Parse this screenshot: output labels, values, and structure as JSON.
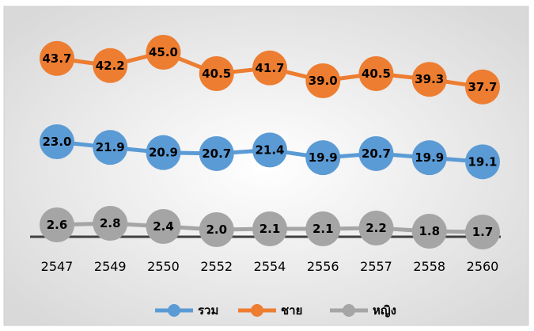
{
  "chart_data": {
    "type": "line",
    "categories": [
      "2547",
      "2549",
      "2550",
      "2552",
      "2554",
      "2556",
      "2557",
      "2558",
      "2560"
    ],
    "ylim": [
      0,
      50
    ],
    "grid": false,
    "legend_position": "bottom",
    "series": [
      {
        "name": "รวม",
        "color": "#5B9BD5",
        "values": [
          23.0,
          21.9,
          20.9,
          20.7,
          21.4,
          19.9,
          20.7,
          19.9,
          19.1
        ]
      },
      {
        "name": "ชาย",
        "color": "#ED7D31",
        "values": [
          43.7,
          42.2,
          45.0,
          40.5,
          41.7,
          39.0,
          40.5,
          39.3,
          37.7
        ]
      },
      {
        "name": "หญิง",
        "color": "#A5A5A5",
        "values": [
          2.6,
          2.8,
          2.4,
          2.0,
          2.1,
          2.1,
          2.2,
          1.8,
          1.7
        ]
      }
    ],
    "value_labels": [
      [
        "23.0",
        "21.9",
        "20.9",
        "20.7",
        "21.4",
        "19.9",
        "20.7",
        "19.9",
        "19.1"
      ],
      [
        "43.7",
        "42.2",
        "45.0",
        "40.5",
        "41.7",
        "39.0",
        "40.5",
        "39.3",
        "37.7"
      ],
      [
        "2.6",
        "2.8",
        "2.4",
        "2.0",
        "2.1",
        "2.1",
        "2.2",
        "1.8",
        "1.7"
      ]
    ]
  }
}
